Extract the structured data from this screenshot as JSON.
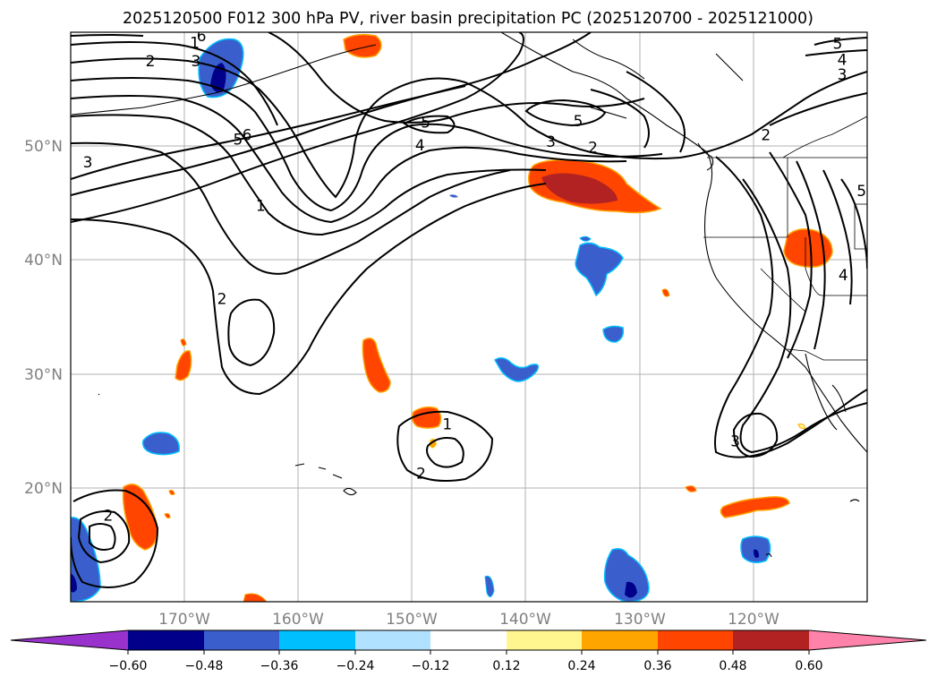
{
  "title": "2025120500 F012 300 hPa PV, river basin precipitation PC (2025120700 - 2025121000)",
  "map": {
    "type": "map",
    "projection": "PlateCarree",
    "lon_range": [
      -180,
      -110
    ],
    "lat_range": [
      10,
      60
    ],
    "lon_ticks": [
      "170°W",
      "160°W",
      "150°W",
      "140°W",
      "130°W",
      "120°W"
    ],
    "lat_ticks": [
      "20°N",
      "30°N",
      "40°N",
      "50°N"
    ],
    "grid": true,
    "contour_labels": [
      {
        "text": "1",
        "lon": -169.1,
        "lat": 59.1
      },
      {
        "text": "2",
        "lon": -173.0,
        "lat": 57.5
      },
      {
        "text": "3",
        "lon": -169.0,
        "lat": 57.5
      },
      {
        "text": "6",
        "lon": -168.5,
        "lat": 59.7
      },
      {
        "text": "5",
        "lon": -165.3,
        "lat": 50.6
      },
      {
        "text": "6",
        "lon": -164.5,
        "lat": 51.0
      },
      {
        "text": "3",
        "lon": -178.5,
        "lat": 48.6
      },
      {
        "text": "1",
        "lon": -163.3,
        "lat": 44.8
      },
      {
        "text": "2",
        "lon": -166.7,
        "lat": 36.6
      },
      {
        "text": "5",
        "lon": -148.8,
        "lat": 52.1
      },
      {
        "text": "4",
        "lon": -149.3,
        "lat": 50.1
      },
      {
        "text": "5",
        "lon": -135.4,
        "lat": 52.2
      },
      {
        "text": "3",
        "lon": -137.8,
        "lat": 50.4
      },
      {
        "text": "2",
        "lon": -134.1,
        "lat": 49.9
      },
      {
        "text": "2",
        "lon": -118.9,
        "lat": 51.0
      },
      {
        "text": "5",
        "lon": -112.6,
        "lat": 59.0
      },
      {
        "text": "4",
        "lon": -112.2,
        "lat": 57.6
      },
      {
        "text": "3",
        "lon": -112.2,
        "lat": 56.3
      },
      {
        "text": "5",
        "lon": -110.5,
        "lat": 46.1
      },
      {
        "text": "4",
        "lon": -112.1,
        "lat": 38.7
      },
      {
        "text": "3",
        "lon": -121.6,
        "lat": 24.1
      },
      {
        "text": "1",
        "lon": -146.9,
        "lat": 25.6
      },
      {
        "text": "2",
        "lon": -149.2,
        "lat": 21.3
      },
      {
        "text": "2",
        "lon": -176.7,
        "lat": 17.6
      }
    ]
  },
  "colorbar": {
    "ticks": [
      "−0.60",
      "−0.48",
      "−0.36",
      "−0.24",
      "−0.12",
      "0.12",
      "0.24",
      "0.36",
      "0.48",
      "0.60"
    ],
    "colors": {
      "under": "#9932cc",
      "c1": "#00008b",
      "c2": "#3a5fcd",
      "c3": "#00bfff",
      "c4": "#b0e2ff",
      "c5": "#ffffff",
      "c6": "#fff68f",
      "c7": "#ffa500",
      "c8": "#ff4500",
      "c9": "#b22222",
      "over": "#ff82ab"
    }
  }
}
